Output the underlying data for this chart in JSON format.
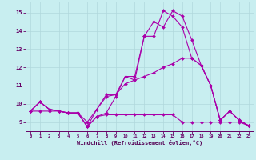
{
  "xlabel": "Windchill (Refroidissement éolien,°C)",
  "background_color": "#c8eef0",
  "grid_color": "#b0d8dc",
  "line_color": "#aa00aa",
  "xlim": [
    -0.5,
    23.5
  ],
  "ylim": [
    8.5,
    15.6
  ],
  "yticks": [
    9,
    10,
    11,
    12,
    13,
    14,
    15
  ],
  "xticks": [
    0,
    1,
    2,
    3,
    4,
    5,
    6,
    7,
    8,
    9,
    10,
    11,
    12,
    13,
    14,
    15,
    16,
    17,
    18,
    19,
    20,
    21,
    22,
    23
  ],
  "lines": [
    {
      "x": [
        0,
        1,
        2,
        3,
        4,
        5,
        6,
        7,
        8,
        9,
        10,
        11,
        12,
        13,
        14,
        15,
        16,
        17,
        18,
        19,
        20,
        21,
        22,
        23
      ],
      "y": [
        9.6,
        9.6,
        9.6,
        9.6,
        9.5,
        9.5,
        8.75,
        9.3,
        9.4,
        9.4,
        9.4,
        9.4,
        9.4,
        9.4,
        9.4,
        9.4,
        9.0,
        9.0,
        9.0,
        9.0,
        9.0,
        9.0,
        9.0,
        8.8
      ]
    },
    {
      "x": [
        0,
        1,
        2,
        3,
        4,
        5,
        6,
        7,
        8,
        9,
        10,
        11,
        12,
        13,
        14,
        15,
        16,
        17,
        18,
        19,
        20,
        21,
        22,
        23
      ],
      "y": [
        9.6,
        10.1,
        9.7,
        9.6,
        9.5,
        9.5,
        8.75,
        9.7,
        10.5,
        10.5,
        11.5,
        11.3,
        13.7,
        13.7,
        15.1,
        14.8,
        14.2,
        12.5,
        12.1,
        11.0,
        9.1,
        9.6,
        9.1,
        8.8
      ]
    },
    {
      "x": [
        0,
        1,
        2,
        3,
        4,
        5,
        6,
        7,
        8,
        9,
        10,
        11,
        12,
        13,
        14,
        15,
        16,
        17,
        18,
        19,
        20,
        21,
        22,
        23
      ],
      "y": [
        9.6,
        10.1,
        9.7,
        9.6,
        9.5,
        9.5,
        8.75,
        9.3,
        9.5,
        10.4,
        11.5,
        11.5,
        13.7,
        14.5,
        14.2,
        15.1,
        14.8,
        13.5,
        12.1,
        11.0,
        9.1,
        9.6,
        9.1,
        8.8
      ]
    },
    {
      "x": [
        0,
        1,
        2,
        3,
        4,
        5,
        6,
        7,
        8,
        9,
        10,
        11,
        12,
        13,
        14,
        15,
        16,
        17,
        18,
        19,
        20,
        21,
        22,
        23
      ],
      "y": [
        9.6,
        10.1,
        9.7,
        9.6,
        9.5,
        9.5,
        9.0,
        9.7,
        10.4,
        10.5,
        11.1,
        11.3,
        11.5,
        11.7,
        12.0,
        12.2,
        12.5,
        12.5,
        12.1,
        11.0,
        9.1,
        9.6,
        9.1,
        8.8
      ]
    }
  ]
}
